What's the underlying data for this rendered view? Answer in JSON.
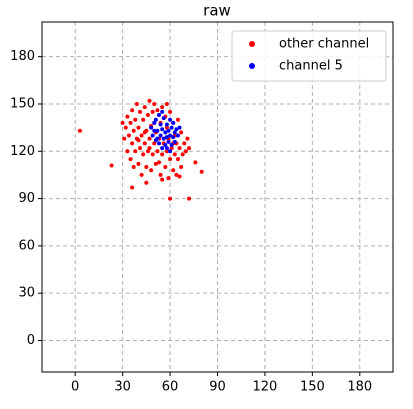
{
  "chart_data": {
    "type": "scatter",
    "title": "raw",
    "xlim": [
      -21,
      201
    ],
    "ylim": [
      -20,
      202
    ],
    "xticks": [
      0,
      30,
      60,
      90,
      120,
      150,
      180
    ],
    "yticks": [
      0,
      30,
      60,
      90,
      120,
      150,
      180
    ],
    "grid": true,
    "legend": "upper right",
    "series": [
      {
        "name": "other channel",
        "color": "#ff0000",
        "x": [
          31,
          32,
          33,
          33,
          34,
          35,
          35,
          36,
          36,
          37,
          37,
          38,
          38,
          39,
          39,
          40,
          40,
          41,
          41,
          42,
          42,
          43,
          43,
          44,
          44,
          45,
          45,
          46,
          46,
          47,
          47,
          48,
          48,
          49,
          49,
          50,
          50,
          51,
          51,
          52,
          52,
          53,
          54,
          54,
          55,
          55,
          56,
          57,
          57,
          58,
          58,
          59,
          59,
          60,
          60,
          61,
          62,
          62,
          63,
          63,
          64,
          64,
          65,
          65,
          66,
          67,
          67,
          68,
          69,
          70,
          71,
          72,
          3,
          23,
          36,
          60,
          72,
          80,
          76,
          45,
          55,
          66,
          30,
          40,
          50,
          47,
          53,
          58,
          62,
          44
        ],
        "values": [
          128,
          135,
          120,
          142,
          130,
          115,
          138,
          125,
          146,
          110,
          133,
          120,
          140,
          128,
          150,
          112,
          135,
          122,
          145,
          105,
          130,
          118,
          140,
          125,
          148,
          110,
          133,
          120,
          143,
          128,
          152,
          108,
          136,
          118,
          145,
          125,
          150,
          112,
          132,
          120,
          146,
          128,
          105,
          138,
          118,
          148,
          125,
          110,
          142,
          120,
          135,
          103,
          128,
          115,
          145,
          122,
          108,
          138,
          118,
          130,
          105,
          125,
          115,
          140,
          122,
          110,
          132,
          118,
          125,
          120,
          128,
          122,
          133,
          111,
          97,
          90,
          90,
          107,
          113,
          100,
          102,
          104,
          138,
          127,
          138,
          122,
          113,
          150,
          125,
          132
        ]
      },
      {
        "name": "channel 5",
        "color": "#0000ff",
        "x": [
          48,
          49,
          50,
          51,
          51,
          52,
          53,
          53,
          54,
          54,
          55,
          55,
          56,
          56,
          57,
          57,
          58,
          58,
          59,
          59,
          60,
          60,
          61,
          61,
          62,
          62,
          63,
          63,
          64,
          65,
          52,
          58,
          60,
          66,
          50,
          55
        ],
        "values": [
          135,
          130,
          138,
          127,
          140,
          133,
          125,
          143,
          130,
          137,
          122,
          134,
          128,
          141,
          132,
          124,
          137,
          129,
          133,
          126,
          140,
          130,
          124,
          135,
          129,
          138,
          132,
          126,
          134,
          130,
          128,
          122,
          120,
          135,
          133,
          145
        ]
      }
    ]
  }
}
